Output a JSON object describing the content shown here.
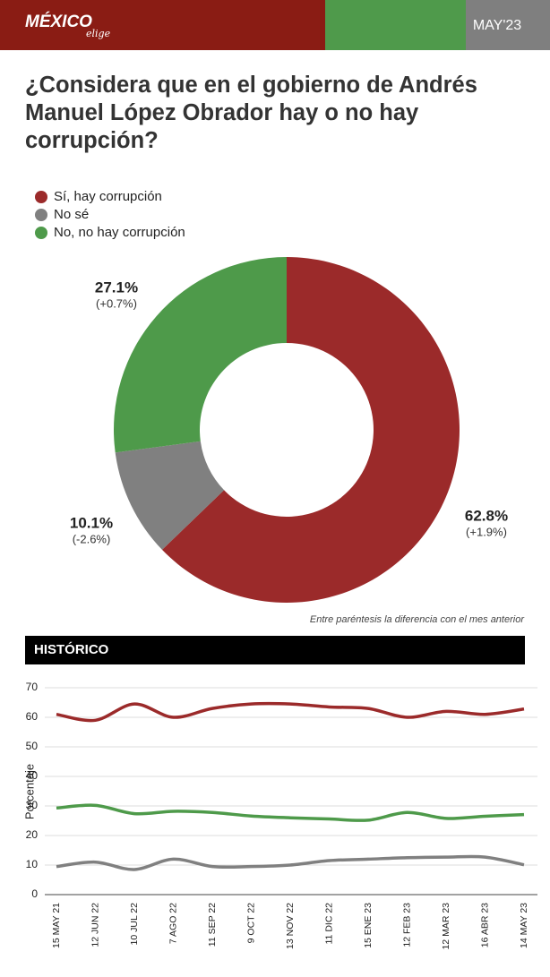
{
  "header": {
    "brand": "MÉXICO",
    "brand_sub": "elige",
    "date": "MAY'23"
  },
  "chart_data": [
    {
      "type": "donut",
      "title": "¿Considera que en el gobierno de Andrés Manuel López Obrador hay o no hay corrupción?",
      "categories": [
        "Sí, hay corrupción",
        "No sé",
        "No, no hay corrupción"
      ],
      "values": [
        62.8,
        10.1,
        27.1
      ],
      "value_labels": [
        "62.8%",
        "10.1%",
        "27.1%"
      ],
      "change_labels": [
        "(+1.9%)",
        "(-2.6%)",
        "(+0.7%)"
      ],
      "colors": [
        "#9b2a2a",
        "#808080",
        "#4e9a4a"
      ],
      "note": "Entre paréntesis la diferencia con el mes anterior"
    },
    {
      "type": "line",
      "title": "HISTÓRICO",
      "ylabel": "Porcentaje",
      "categories": [
        "15 MAY 21",
        "12 JUN 22",
        "10 JUL 22",
        "7 AGO 22",
        "11 SEP 22",
        "9 OCT 22",
        "13 NOV 22",
        "11 DIC 22",
        "15 ENE 23",
        "12 FEB 23",
        "12 MAR 23",
        "16 ABR 23",
        "14 MAY 23"
      ],
      "series": [
        {
          "name": "Sí, hay corrupción",
          "color": "#9b2a2a",
          "values": [
            61,
            59,
            64.5,
            60,
            63,
            64.5,
            64.5,
            63.5,
            63,
            60,
            62,
            61,
            62.8
          ]
        },
        {
          "name": "No, no hay corrupción",
          "color": "#4e9a4a",
          "values": [
            29.3,
            30.2,
            27.4,
            28.2,
            27.8,
            26.6,
            26,
            25.6,
            25.2,
            27.8,
            25.8,
            26.5,
            27.1
          ]
        },
        {
          "name": "No sé",
          "color": "#808080",
          "values": [
            9.5,
            11,
            8.5,
            12,
            9.5,
            9.5,
            10,
            11.5,
            12,
            12.5,
            12.7,
            12.7,
            10.1
          ]
        }
      ],
      "ylim": [
        0,
        70
      ],
      "yticks": [
        0,
        10,
        20,
        30,
        40,
        50,
        60,
        70
      ],
      "grid": true
    }
  ]
}
